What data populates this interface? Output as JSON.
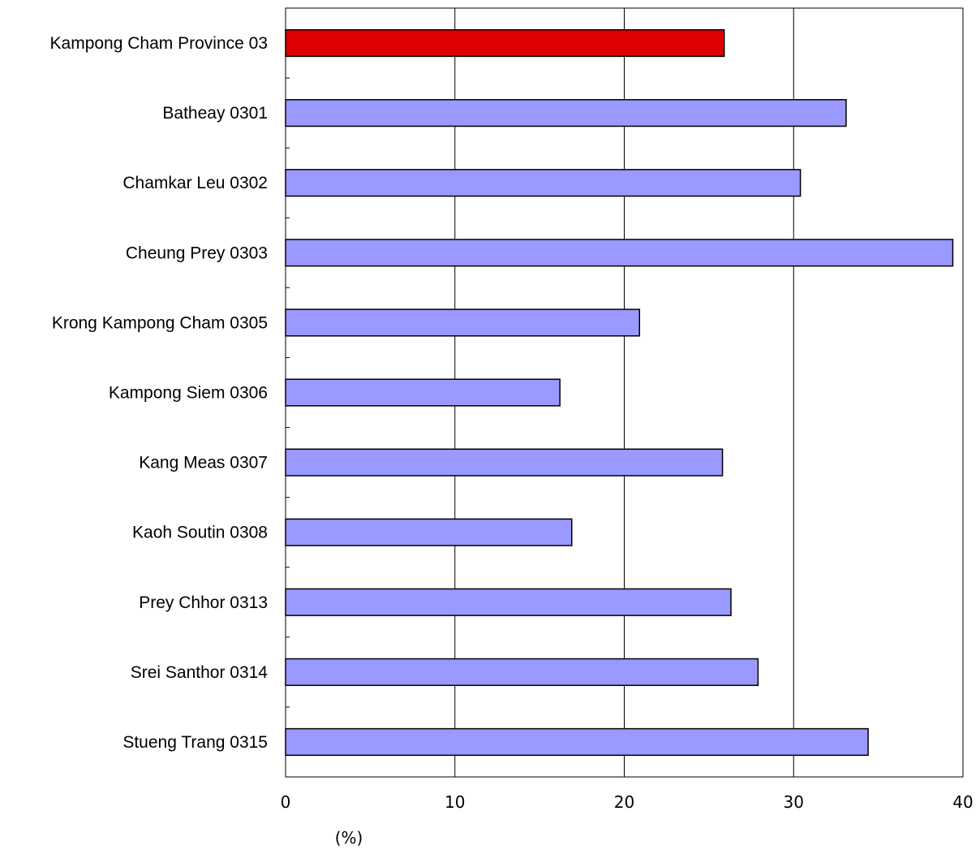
{
  "chart_data": {
    "type": "bar",
    "orientation": "horizontal",
    "categories": [
      "Kampong Cham Province 03",
      "Batheay 0301",
      "Chamkar Leu 0302",
      "Cheung Prey 0303",
      "Krong Kampong Cham 0305",
      "Kampong Siem 0306",
      "Kang Meas 0307",
      "Kaoh Soutin 0308",
      "Prey Chhor 0313",
      "Srei Santhor 0314",
      "Stueng Trang 0315"
    ],
    "values": [
      25.9,
      33.1,
      30.4,
      39.4,
      20.9,
      16.2,
      25.8,
      16.9,
      26.3,
      27.9,
      34.4
    ],
    "xlim": [
      0,
      40
    ],
    "xticks": [
      "0",
      "10",
      "20",
      "30",
      "40"
    ],
    "xlabel": "(%)",
    "title": "",
    "grid": "vertical",
    "colors": {
      "highlight": "#dd0000",
      "bar": "#9999ff",
      "outline": "#000000",
      "grid": "#000000"
    }
  }
}
